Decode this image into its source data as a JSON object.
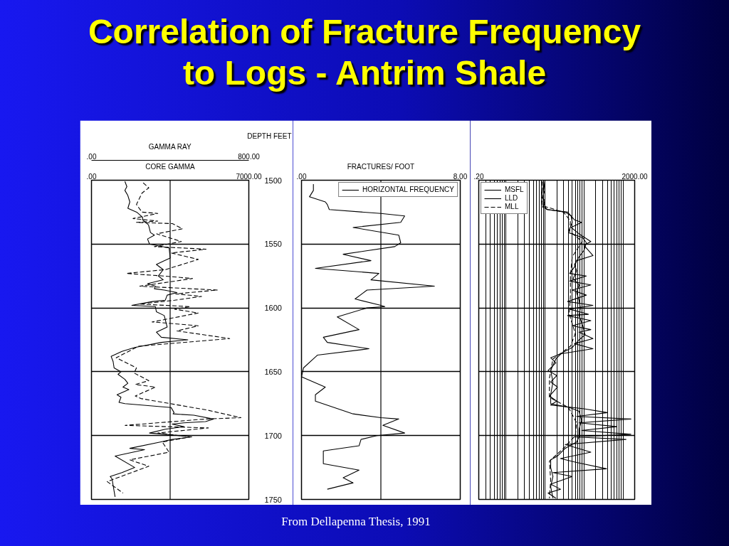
{
  "chart_data": [
    {
      "type": "line",
      "title": "Correlation of Fracture Frequency to Logs - Antrim Shale",
      "annotations": [
        "From Dellapenna Thesis, 1991"
      ],
      "xlabel": "GAMMA RAY",
      "xlim": [
        0,
        800
      ],
      "xticks": [
        {
          "value": 0,
          "label": ".00"
        },
        {
          "value": 800,
          "label": "800.00"
        }
      ],
      "x2label": "CORE GAMMA",
      "x2lim": [
        0,
        7000
      ],
      "x2ticks": [
        {
          "value": 0,
          "label": ".00"
        },
        {
          "value": 7000,
          "label": "7000.00"
        }
      ],
      "ylabel": "DEPTH FEET",
      "ylim": [
        1750,
        1500
      ],
      "yticks": [
        1500,
        1550,
        1600,
        1650,
        1700,
        1750
      ],
      "grid": true,
      "ref_lines": [
        {
          "axis": "x",
          "value": 400
        }
      ],
      "series": [
        {
          "color": "#000000",
          "line_style": "solid",
          "x": [
            170,
            180,
            170,
            185,
            195,
            185,
            230,
            260,
            260,
            290,
            300,
            320,
            285,
            295,
            395,
            400,
            370,
            330,
            365,
            340,
            365,
            285,
            325,
            320,
            370,
            435,
            385,
            375,
            310,
            205,
            325,
            330,
            370,
            375,
            385,
            330,
            355,
            490,
            355,
            220,
            155,
            100,
            110,
            115,
            150,
            135,
            170,
            185,
            160,
            190,
            130,
            150,
            140,
            170,
            405,
            420,
            415,
            520,
            620,
            580,
            470,
            410,
            470,
            375,
            295,
            375,
            510,
            410,
            350,
            195,
            270,
            120,
            220,
            155,
            95,
            105,
            110,
            120
          ],
          "values": [
            1501,
            1505,
            1508,
            1512,
            1517,
            1522,
            1525,
            1529,
            1531,
            1535,
            1541,
            1543,
            1546,
            1550,
            1553,
            1561,
            1563,
            1566,
            1570,
            1575,
            1578,
            1581,
            1583,
            1585,
            1586,
            1588,
            1590,
            1594,
            1595,
            1598,
            1599,
            1603,
            1606,
            1609,
            1615,
            1619,
            1623,
            1625,
            1627,
            1631,
            1634,
            1638,
            1642,
            1647,
            1650,
            1652,
            1656,
            1659,
            1662,
            1664,
            1668,
            1670,
            1674,
            1675,
            1678,
            1682,
            1683,
            1684,
            1687,
            1689,
            1690,
            1691,
            1693,
            1695,
            1698,
            1699,
            1701,
            1703,
            1705,
            1710,
            1711,
            1716,
            1725,
            1729,
            1732,
            1734,
            1739,
            1748
          ]
        },
        {
          "color": "#000000",
          "line_style": "dashed",
          "axis": "x2",
          "x": [
            2300,
            2550,
            2250,
            2000,
            2250,
            2950,
            1850,
            2950,
            2000,
            3600,
            4050,
            2900,
            4000,
            2800,
            5100,
            3550,
            4750,
            3300,
            1550,
            3200,
            4500,
            2150,
            5600,
            3750,
            4900,
            3700,
            2150,
            4400,
            3700,
            4750,
            2700,
            4750,
            3800,
            6150,
            2100,
            1100,
            2000,
            1900,
            2550,
            1950,
            2850,
            1950,
            2200,
            5150,
            6650,
            5100,
            1500,
            5200,
            2950,
            4400,
            3150,
            3450,
            1700,
            2550,
            700,
            1400
          ],
          "values": [
            1502,
            1506,
            1510,
            1519,
            1525,
            1526,
            1530,
            1532,
            1533,
            1534,
            1538,
            1542,
            1548,
            1552,
            1554,
            1557,
            1562,
            1570,
            1573,
            1575,
            1577,
            1583,
            1586,
            1589,
            1591,
            1594,
            1597,
            1599,
            1601,
            1604,
            1611,
            1614,
            1618,
            1624,
            1630,
            1639,
            1647,
            1651,
            1657,
            1660,
            1662,
            1669,
            1671,
            1680,
            1686,
            1687,
            1692,
            1694,
            1698,
            1701,
            1705,
            1713,
            1719,
            1724,
            1736,
            1745
          ]
        }
      ]
    },
    {
      "type": "line",
      "xlabel": "FRACTURES/ FOOT",
      "xlim": [
        0,
        8
      ],
      "xticks": [
        {
          "value": 0,
          "label": ".00"
        },
        {
          "value": 8,
          "label": "8.00"
        }
      ],
      "ylim": [
        1750,
        1500
      ],
      "yticks": [
        1500,
        1550,
        1600,
        1650,
        1700,
        1750
      ],
      "tick_labels": "x",
      "grid": true,
      "legend": "top right",
      "ref_lines": [
        {
          "axis": "x",
          "value": 4
        }
      ],
      "series": [
        {
          "name": "HORIZONTAL FREQUENCY",
          "color": "#000000",
          "line_style": "solid",
          "x": [
            0.6,
            0.6,
            0.4,
            1.2,
            1.3,
            1.4,
            4.0,
            5.2,
            5.0,
            2.6,
            4.9,
            5.0,
            4.7,
            2.1,
            3.5,
            0.7,
            3.9,
            3.5,
            6.7,
            3.3,
            2.7,
            4.0,
            4.2,
            3.3,
            1.8,
            2.9,
            1.1,
            1.3,
            3.4,
            0.8,
            0.1,
            0.0,
            1.2,
            0.7,
            0.7,
            2.6,
            4.0,
            4.9,
            4.1,
            5.2,
            3.8,
            3.0,
            2.9,
            1.1,
            1.1,
            2.9,
            2.1,
            2.6,
            1.3
          ],
          "values": [
            1503,
            1508,
            1513,
            1517,
            1519,
            1523,
            1526,
            1528,
            1533,
            1537,
            1543,
            1549,
            1552,
            1558,
            1563,
            1569,
            1573,
            1578,
            1583,
            1586,
            1593,
            1598,
            1599,
            1600,
            1607,
            1617,
            1623,
            1627,
            1632,
            1637,
            1647,
            1654,
            1662,
            1668,
            1673,
            1683,
            1686,
            1687,
            1692,
            1698,
            1700,
            1703,
            1708,
            1712,
            1722,
            1727,
            1733,
            1737,
            1742
          ]
        }
      ]
    },
    {
      "type": "line",
      "log": "x",
      "xlim": [
        0.2,
        2000
      ],
      "xticks": [
        {
          "value": 0.2,
          "label": ".20"
        },
        {
          "value": 0.3,
          "label": null
        },
        {
          "value": 0.4,
          "label": null
        },
        {
          "value": 0.5,
          "label": null
        },
        {
          "value": 0.6,
          "label": null
        },
        {
          "value": 0.7,
          "label": null
        },
        {
          "value": 0.8,
          "label": null
        },
        {
          "value": 0.9,
          "label": null
        },
        {
          "value": 1,
          "label": null
        },
        {
          "value": 2,
          "label": null
        },
        {
          "value": 3,
          "label": null
        },
        {
          "value": 4,
          "label": null
        },
        {
          "value": 5,
          "label": null
        },
        {
          "value": 6,
          "label": null
        },
        {
          "value": 7,
          "label": null
        },
        {
          "value": 8,
          "label": null
        },
        {
          "value": 9,
          "label": null
        },
        {
          "value": 10,
          "label": null
        },
        {
          "value": 20,
          "label": null
        },
        {
          "value": 30,
          "label": null
        },
        {
          "value": 40,
          "label": null
        },
        {
          "value": 50,
          "label": null
        },
        {
          "value": 60,
          "label": null
        },
        {
          "value": 70,
          "label": null
        },
        {
          "value": 80,
          "label": null
        },
        {
          "value": 90,
          "label": null
        },
        {
          "value": 100,
          "label": null
        },
        {
          "value": 200,
          "label": null
        },
        {
          "value": 300,
          "label": null
        },
        {
          "value": 400,
          "label": null
        },
        {
          "value": 500,
          "label": null
        },
        {
          "value": 600,
          "label": null
        },
        {
          "value": 700,
          "label": null
        },
        {
          "value": 800,
          "label": null
        },
        {
          "value": 900,
          "label": null
        },
        {
          "value": 1000,
          "label": null
        },
        {
          "value": 2000,
          "label": "2000.00"
        }
      ],
      "ylim": [
        1750,
        1500
      ],
      "yticks": [
        1500,
        1550,
        1600,
        1650,
        1700,
        1750
      ],
      "tick_labels": "x",
      "grid": true,
      "legend": "top left",
      "series": [
        {
          "name": "MSFL",
          "color": "#000000",
          "line_style": "solid",
          "x": [
            9.3,
            9.9,
            8.7,
            9.3,
            11,
            38,
            57,
            87,
            47,
            75,
            150,
            100,
            170,
            65,
            57,
            43,
            115,
            43,
            150,
            50,
            115,
            38,
            170,
            43,
            130,
            38,
            150,
            50,
            150,
            75,
            170,
            57,
            170,
            25,
            14,
            19,
            12,
            20,
            14,
            21,
            13,
            20,
            14,
            100,
            400,
            65,
            1600,
            75,
            700,
            87,
            1600,
            57,
            1200,
            33,
            150,
            25,
            65,
            380,
            16,
            50,
            14,
            25,
            12,
            19
          ],
          "values": [
            1501,
            1508,
            1513,
            1518,
            1523,
            1525,
            1531,
            1533,
            1537,
            1542,
            1548,
            1551,
            1559,
            1563,
            1568,
            1573,
            1575,
            1579,
            1582,
            1586,
            1590,
            1595,
            1598,
            1601,
            1605,
            1606,
            1610,
            1614,
            1617,
            1619,
            1624,
            1628,
            1632,
            1636,
            1639,
            1643,
            1649,
            1653,
            1658,
            1662,
            1669,
            1673,
            1676,
            1679,
            1682,
            1685,
            1687,
            1690,
            1693,
            1696,
            1699,
            1701,
            1703,
            1707,
            1713,
            1718,
            1721,
            1726,
            1729,
            1732,
            1738,
            1742,
            1745,
            1749
          ]
        },
        {
          "name": "LLD",
          "color": "#000000",
          "line_style": "solid",
          "x": [
            9.0,
            9.0,
            8.1,
            9.9,
            8.7,
            12,
            33,
            47,
            50,
            43,
            40,
            75,
            93,
            115,
            100,
            75,
            57,
            65,
            53,
            75,
            65,
            75,
            81,
            75,
            93,
            107,
            75,
            50,
            28,
            19,
            14,
            16,
            14,
            14,
            43,
            75,
            87,
            75,
            75,
            65,
            43,
            33,
            21,
            14,
            14,
            16,
            14,
            16
          ],
          "values": [
            1501,
            1505,
            1513,
            1516,
            1521,
            1523,
            1525,
            1528,
            1533,
            1538,
            1541,
            1544,
            1545,
            1549,
            1555,
            1560,
            1566,
            1571,
            1577,
            1582,
            1588,
            1594,
            1600,
            1606,
            1614,
            1621,
            1625,
            1631,
            1635,
            1640,
            1649,
            1658,
            1668,
            1675,
            1678,
            1681,
            1688,
            1695,
            1701,
            1705,
            1708,
            1710,
            1716,
            1719,
            1725,
            1732,
            1740,
            1749
          ]
        },
        {
          "name": "MLL",
          "color": "#000000",
          "line_style": "dashed",
          "x": [
            8.4,
            8.1,
            8.7,
            30,
            45,
            43,
            90,
            50,
            45,
            45,
            42,
            60,
            45,
            16,
            13,
            13,
            40,
            65,
            60,
            30,
            13,
            14,
            13
          ],
          "values": [
            1501,
            1510,
            1520,
            1525,
            1532,
            1540,
            1548,
            1560,
            1575,
            1590,
            1605,
            1620,
            1630,
            1640,
            1655,
            1670,
            1678,
            1690,
            1700,
            1710,
            1720,
            1735,
            1749
          ]
        }
      ]
    }
  ]
}
